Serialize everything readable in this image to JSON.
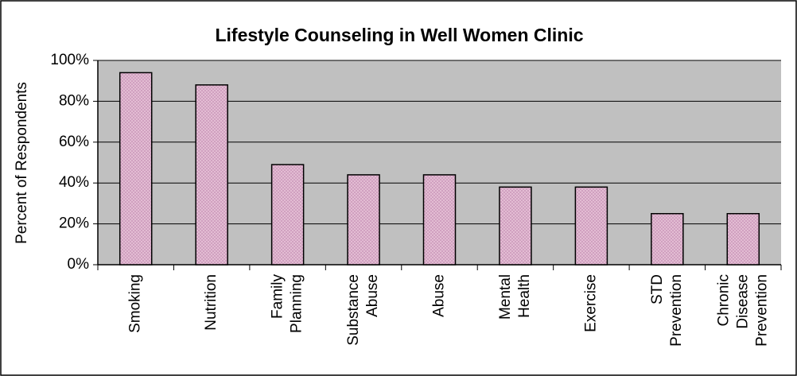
{
  "chart_data": {
    "type": "bar",
    "title": "Lifestyle Counseling in Well Women Clinic",
    "ylabel": "Percent of Respondents",
    "categories": [
      [
        "Smoking"
      ],
      [
        "Nutrition"
      ],
      [
        "Family",
        "Planning"
      ],
      [
        "Substance",
        "Abuse"
      ],
      [
        "Abuse"
      ],
      [
        "Mental",
        "Health"
      ],
      [
        "Exercise"
      ],
      [
        "STD",
        "Prevention"
      ],
      [
        "Chronic",
        "Disease",
        "Prevention"
      ]
    ],
    "values": [
      94,
      88,
      49,
      44,
      44,
      38,
      38,
      25,
      25
    ],
    "color": "#cc99bb",
    "ylim": [
      0,
      100
    ],
    "yticks": [
      {
        "value": 0,
        "label": "0%"
      },
      {
        "value": 20,
        "label": "20%"
      },
      {
        "value": 40,
        "label": "40%"
      },
      {
        "value": 60,
        "label": "60%"
      },
      {
        "value": 80,
        "label": "80%"
      },
      {
        "value": 100,
        "label": "100%"
      }
    ],
    "grid": true
  }
}
